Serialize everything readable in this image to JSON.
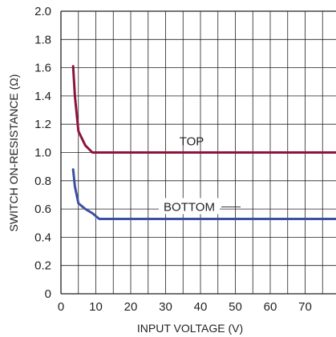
{
  "chart_data": {
    "type": "line",
    "xlabel": "INPUT VOLTAGE (V)",
    "ylabel": "SWITCH ON-RESISTANCE (Ω)",
    "xlim": [
      0,
      80
    ],
    "ylim": [
      0,
      2.0
    ],
    "xticks": [
      "0",
      "10",
      "20",
      "30",
      "40",
      "50",
      "60",
      "70"
    ],
    "yticks": [
      "0",
      "0.2",
      "0.4",
      "0.6",
      "0.8",
      "1.0",
      "1.2",
      "1.4",
      "1.6",
      "1.8",
      "2.0"
    ],
    "grid": true,
    "series": [
      {
        "name": "TOP",
        "color": "#8b1538",
        "x": [
          3.5,
          4,
          5,
          7,
          9,
          10,
          11,
          20,
          40,
          60,
          80
        ],
        "y": [
          1.61,
          1.4,
          1.15,
          1.05,
          1.0,
          1.0,
          1.0,
          1.0,
          1.0,
          1.0,
          1.0
        ]
      },
      {
        "name": "BOTTOM",
        "color": "#3a50a3",
        "x": [
          3.5,
          4,
          5,
          7,
          9,
          11,
          14,
          20,
          40,
          60,
          80
        ],
        "y": [
          0.88,
          0.76,
          0.64,
          0.6,
          0.57,
          0.53,
          0.53,
          0.53,
          0.53,
          0.53,
          0.53
        ]
      }
    ],
    "annotations": [
      "TOP",
      "BOTTOM"
    ]
  }
}
